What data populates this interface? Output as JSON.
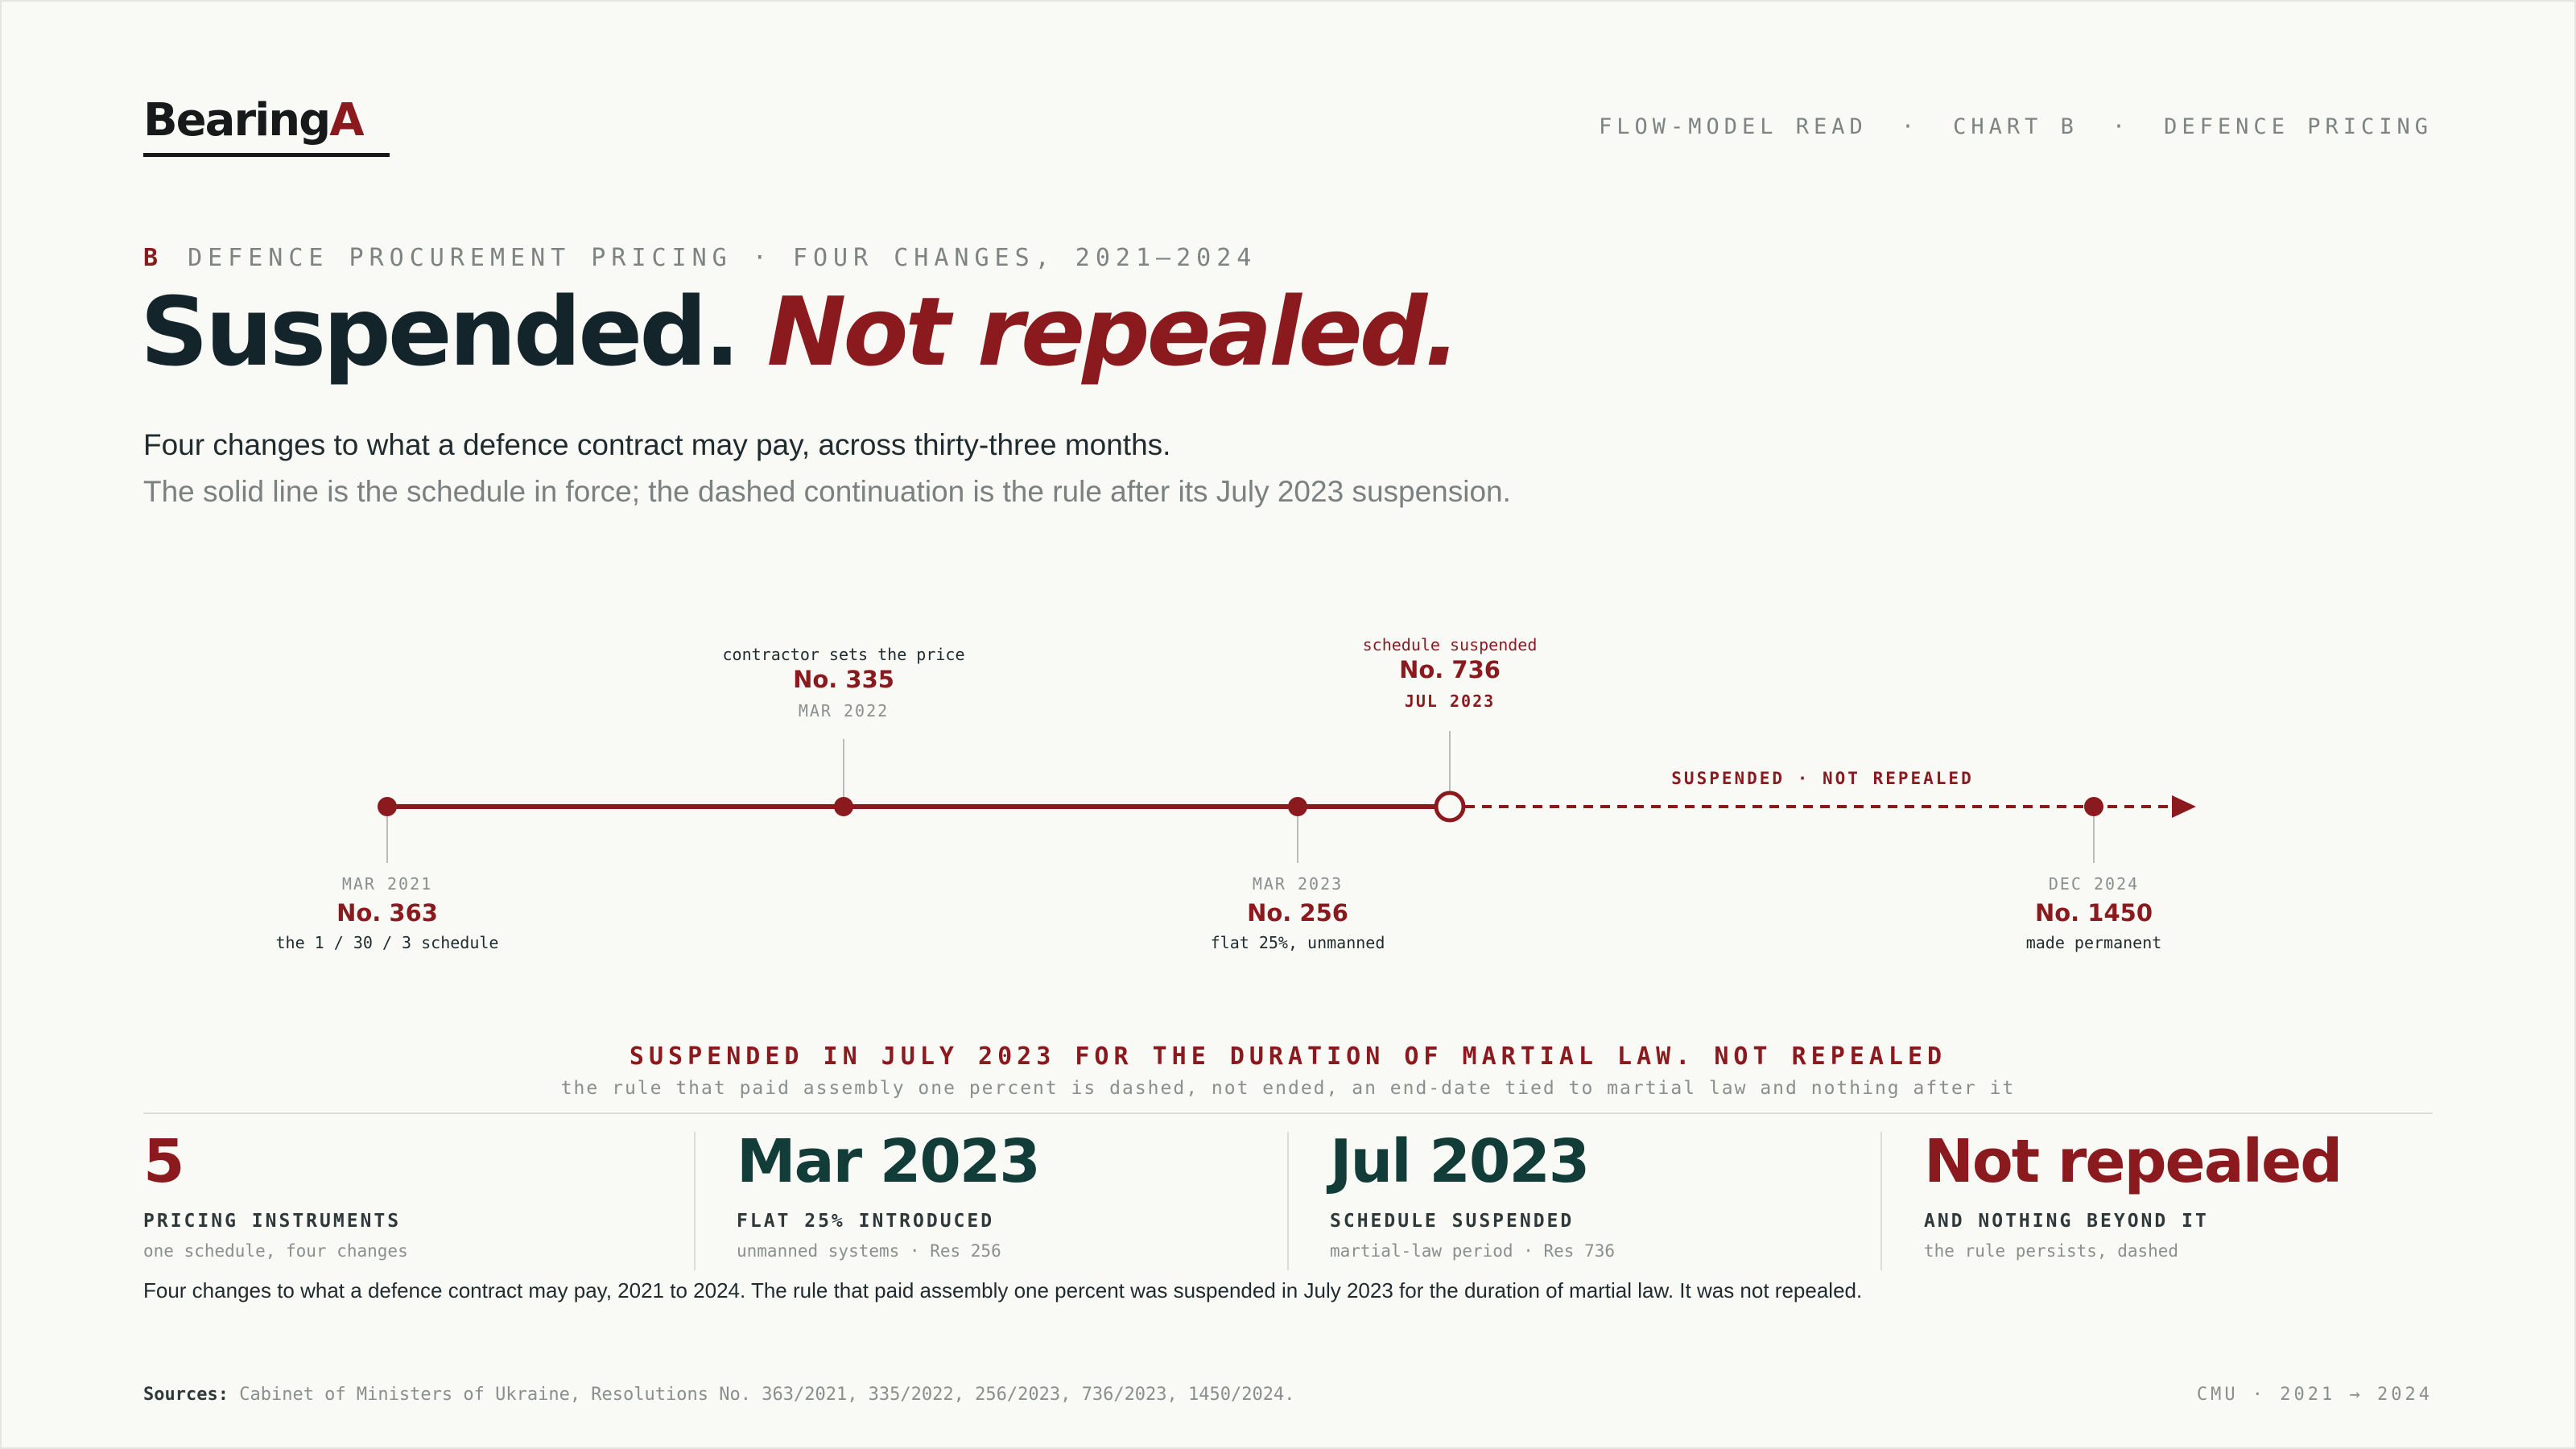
{
  "brand": {
    "name": "Bearing",
    "mark": "A"
  },
  "nav": [
    "FLOW-MODEL READ",
    "·",
    "CHART B",
    "·",
    "DEFENCE PRICING"
  ],
  "kicker": {
    "letter": "B",
    "text": "DEFENCE PROCUREMENT PRICING · FOUR CHANGES, 2021–2024"
  },
  "title": {
    "plain": "Suspended.",
    "emphasis": "Not repealed."
  },
  "lead": {
    "line1": "Four changes to what a defence contract may pay, across thirty-three months.",
    "line2": "The solid line is the schedule in force; the dashed continuation is the rule after its July 2023 suspension."
  },
  "timeline": {
    "span_label": "SUSPENDED · NOT REPEALED",
    "events": [
      {
        "date": "MAR 2021",
        "number": "No. 363",
        "note": "the 1 / 30 / 3 schedule",
        "state": "in force"
      },
      {
        "date": "MAR 2022",
        "number": "No. 335",
        "note": "contractor sets the price",
        "state": "in force"
      },
      {
        "date": "MAR 2023",
        "number": "No. 256",
        "note": "flat 25%, unmanned",
        "state": "in force"
      },
      {
        "date": "JUL 2023",
        "number": "No. 736",
        "note": "schedule suspended",
        "state": "suspension"
      },
      {
        "date": "DEC 2024",
        "number": "No. 1450",
        "note": "made permanent",
        "state": "suspended"
      }
    ]
  },
  "callout": {
    "main": "SUSPENDED IN JULY 2023 FOR THE DURATION OF MARTIAL LAW. NOT REPEALED",
    "sub": "the rule that paid assembly one percent is dashed, not ended, an end-date tied to martial law and nothing after it"
  },
  "stats": [
    {
      "value": "5",
      "label": "PRICING INSTRUMENTS",
      "sub": "one schedule, four changes",
      "color": "#8b1a1f"
    },
    {
      "value": "Mar 2023",
      "label": "FLAT 25% INTRODUCED",
      "sub": "unmanned systems · Res 256",
      "color": "#123c37"
    },
    {
      "value": "Jul 2023",
      "label": "SCHEDULE SUSPENDED",
      "sub": "martial-law period · Res 736",
      "color": "#123c37"
    },
    {
      "value": "Not repealed",
      "label": "AND NOTHING BEYOND IT",
      "sub": "the rule persists, dashed",
      "color": "#8b1a1f"
    }
  ],
  "summary": "Four changes to what a defence contract may pay, 2021 to 2024. The rule that paid assembly one percent was suspended in July 2023 for the duration of martial law. It was not repealed.",
  "sources": {
    "lead": "Sources:",
    "text": "Cabinet of Ministers of Ukraine, Resolutions No. 363/2021, 335/2022, 256/2023, 736/2023, 1450/2024."
  },
  "footer_right": "CMU · 2021 → 2024",
  "colors": {
    "accent": "#8b1a1f",
    "ink": "#13252a",
    "teal": "#123c37",
    "muted": "#8a8f8d",
    "background": "#f9f9f6"
  }
}
